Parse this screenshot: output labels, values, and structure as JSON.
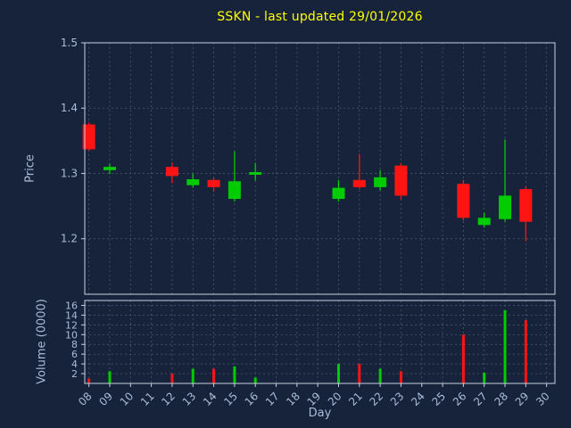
{
  "title": "SSKN - last updated 29/01/2026",
  "colors": {
    "background": "#16233a",
    "title": "#ffff00",
    "axis_label": "#a9bcd9",
    "tick_label": "#a9bcd9",
    "grid": "#4f6076",
    "spine": "#c7d2e0",
    "up": "#00cc00",
    "down": "#ff1414"
  },
  "chart_data": {
    "type": "candlestick",
    "title": "SSKN - last updated 29/01/2026",
    "xlabel": "Day",
    "legend": "none",
    "grid": "on",
    "x_axis": {
      "range": [
        7.8,
        30.4
      ],
      "ticks": [
        8,
        9,
        10,
        11,
        12,
        13,
        14,
        15,
        16,
        17,
        18,
        19,
        20,
        21,
        22,
        23,
        24,
        25,
        26,
        27,
        28,
        29,
        30
      ],
      "tick_labels": [
        "08",
        "09",
        "10",
        "11",
        "12",
        "13",
        "14",
        "15",
        "16",
        "17",
        "18",
        "19",
        "20",
        "21",
        "22",
        "23",
        "24",
        "25",
        "26",
        "27",
        "28",
        "29",
        "30"
      ]
    },
    "price_axis": {
      "label": "Price",
      "range": [
        1.115,
        1.5
      ],
      "ticks": [
        1.2,
        1.3,
        1.4,
        1.5
      ],
      "tick_labels": [
        "1.2",
        "1.3",
        "1.4",
        "1.5"
      ]
    },
    "volume_axis": {
      "label": "Volume (0000)",
      "range": [
        0,
        17
      ],
      "ticks": [
        2,
        4,
        6,
        8,
        10,
        12,
        14,
        16
      ],
      "tick_labels": [
        "2",
        "4",
        "6",
        "8",
        "10",
        "12",
        "14",
        "16"
      ]
    },
    "candles": [
      {
        "day": 8,
        "open": 1.375,
        "high": 1.378,
        "low": 1.335,
        "close": 1.337,
        "volume": 1.0
      },
      {
        "day": 9,
        "open": 1.305,
        "high": 1.315,
        "low": 1.299,
        "close": 1.31,
        "volume": 2.5
      },
      {
        "day": 12,
        "open": 1.31,
        "high": 1.317,
        "low": 1.285,
        "close": 1.296,
        "volume": 2.0
      },
      {
        "day": 13,
        "open": 1.282,
        "high": 1.3,
        "low": 1.278,
        "close": 1.291,
        "volume": 3.0
      },
      {
        "day": 14,
        "open": 1.29,
        "high": 1.293,
        "low": 1.272,
        "close": 1.279,
        "volume": 3.0
      },
      {
        "day": 15,
        "open": 1.261,
        "high": 1.334,
        "low": 1.257,
        "close": 1.288,
        "volume": 3.5
      },
      {
        "day": 16,
        "open": 1.298,
        "high": 1.316,
        "low": 1.289,
        "close": 1.302,
        "volume": 1.2
      },
      {
        "day": 20,
        "open": 1.261,
        "high": 1.29,
        "low": 1.257,
        "close": 1.278,
        "volume": 4.0
      },
      {
        "day": 21,
        "open": 1.29,
        "high": 1.33,
        "low": 1.276,
        "close": 1.279,
        "volume": 4.0
      },
      {
        "day": 22,
        "open": 1.279,
        "high": 1.305,
        "low": 1.274,
        "close": 1.294,
        "volume": 3.0
      },
      {
        "day": 23,
        "open": 1.312,
        "high": 1.316,
        "low": 1.26,
        "close": 1.266,
        "volume": 2.5
      },
      {
        "day": 26,
        "open": 1.284,
        "high": 1.29,
        "low": 1.228,
        "close": 1.232,
        "volume": 10.0
      },
      {
        "day": 27,
        "open": 1.221,
        "high": 1.24,
        "low": 1.217,
        "close": 1.232,
        "volume": 2.2
      },
      {
        "day": 28,
        "open": 1.23,
        "high": 1.352,
        "low": 1.226,
        "close": 1.266,
        "volume": 15.0
      },
      {
        "day": 29,
        "open": 1.276,
        "high": 1.28,
        "low": 1.196,
        "close": 1.226,
        "volume": 13.0
      }
    ]
  }
}
